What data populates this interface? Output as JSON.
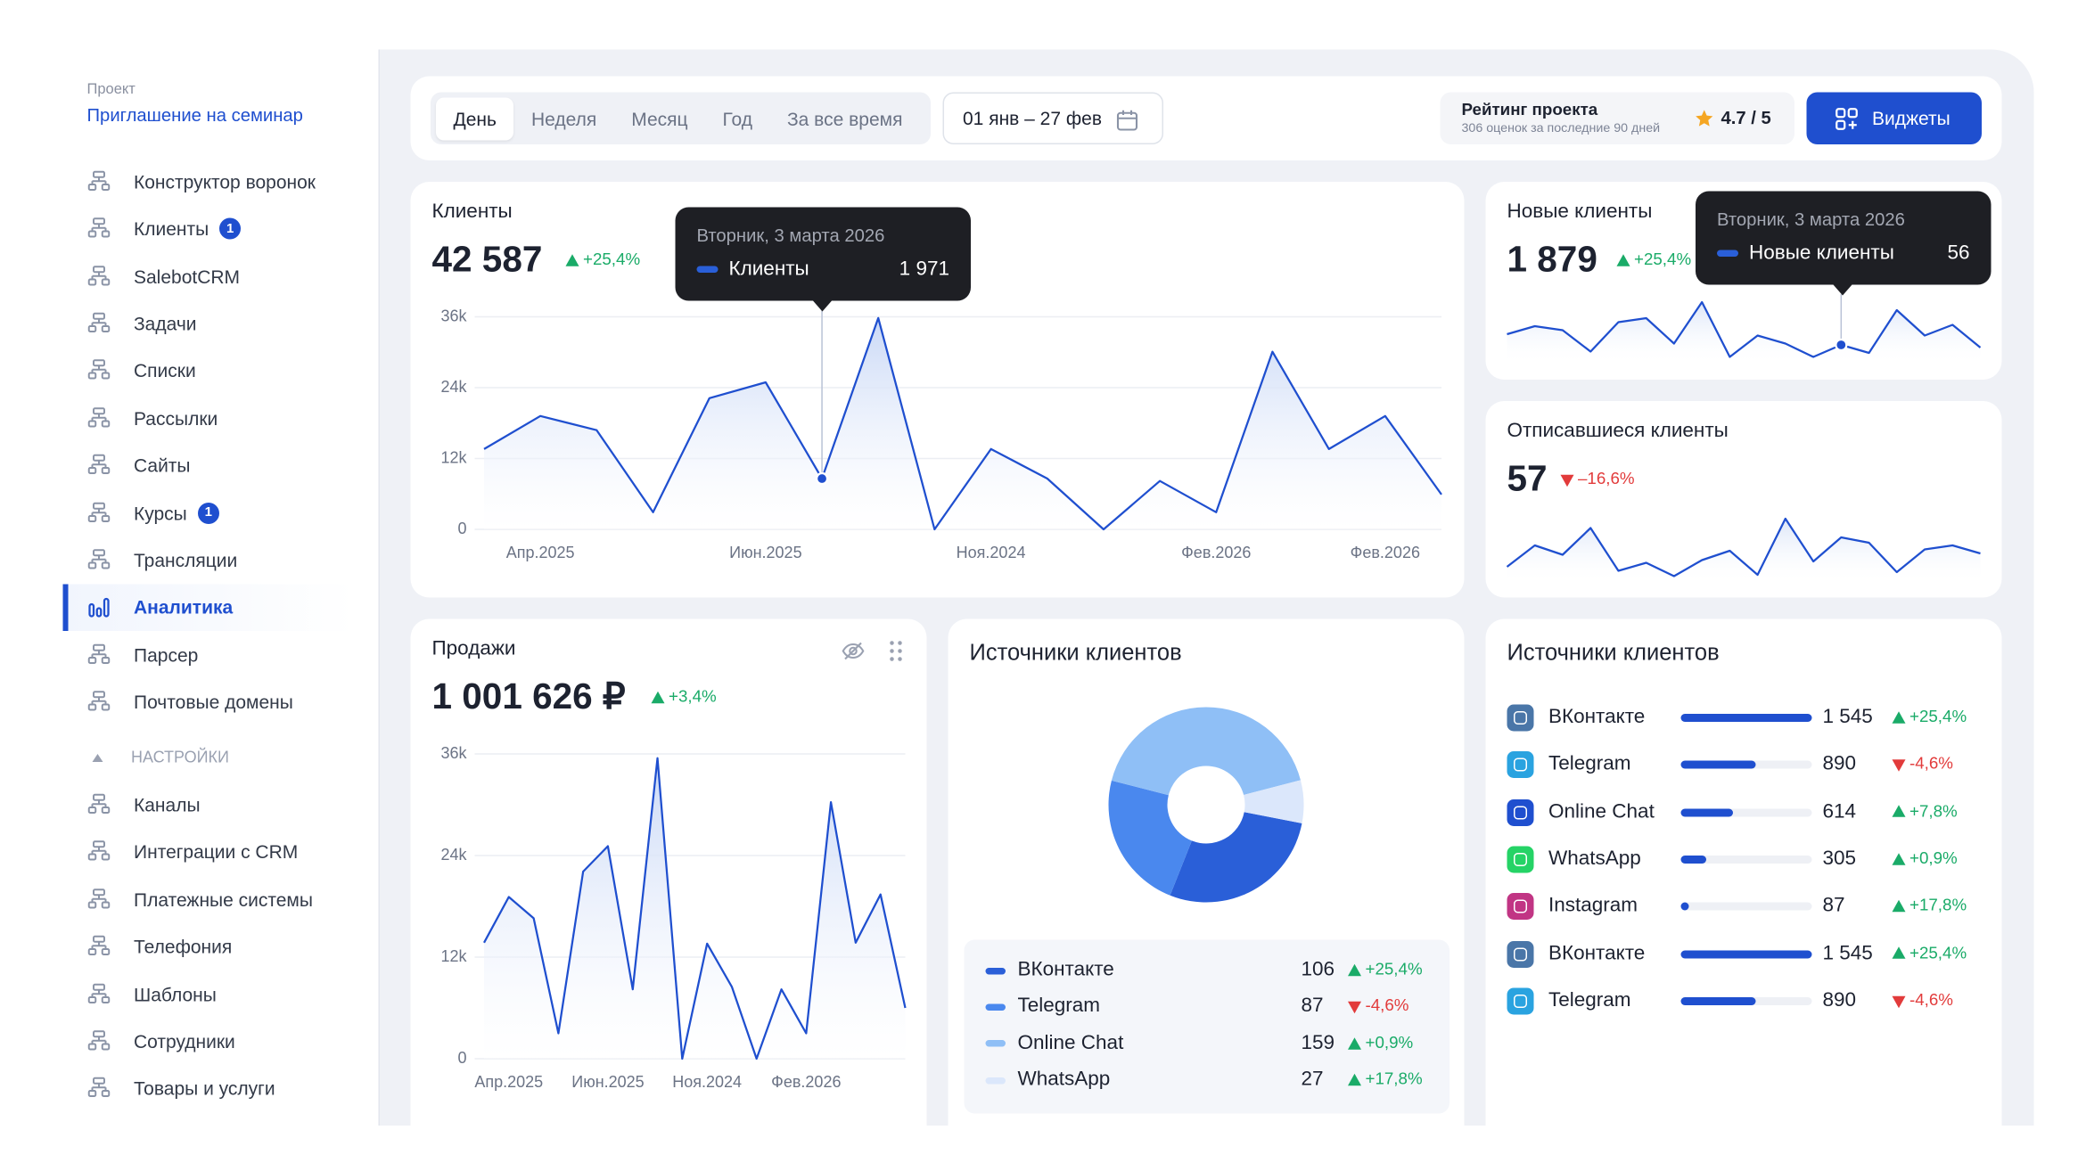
{
  "sidebar": {
    "project_label": "Проект",
    "project_name": "Приглашение на семинар",
    "active_index": 9,
    "items": [
      {
        "label": "Конструктор воронок"
      },
      {
        "label": "Клиенты",
        "badge": 1
      },
      {
        "label": "SalebotCRM"
      },
      {
        "label": "Задачи"
      },
      {
        "label": "Списки"
      },
      {
        "label": "Рассылки"
      },
      {
        "label": "Сайты"
      },
      {
        "label": "Курсы",
        "badge": 1
      },
      {
        "label": "Трансляции"
      },
      {
        "label": "Аналитика"
      },
      {
        "label": "Парсер"
      },
      {
        "label": "Почтовые домены"
      }
    ],
    "settings_label": "НАСТРОЙКИ",
    "settings_items": [
      "Каналы",
      "Интеграции с CRM",
      "Платежные системы",
      "Телефония",
      "Шаблоны",
      "Сотрудники",
      "Товары и услуги"
    ]
  },
  "toolbar": {
    "periods": [
      "День",
      "Неделя",
      "Месяц",
      "Год",
      "За все время"
    ],
    "active_period": 0,
    "date_range": "01 янв – 27 фев",
    "rating": {
      "title": "Рейтинг проекта",
      "subtitle": "306 оценок за последние 90 дней",
      "score": "4.7 / 5"
    },
    "widgets_button": "Виджеты"
  },
  "clients": {
    "title": "Клиенты",
    "total": "42 587",
    "change": "+25,4%",
    "tooltip": {
      "date": "Вторник, 3 марта 2026",
      "label": "Клиенты",
      "value": "1 971"
    },
    "chart": {
      "type": "area",
      "color": "#1f4fcf",
      "categories": [
        null,
        "Апр.2025",
        null,
        null,
        null,
        "Июн.2025",
        null,
        null,
        null,
        "Ноя.2024",
        null,
        null,
        null,
        "Фев.2026",
        null,
        null,
        "Фев.2026",
        null
      ],
      "values": [
        13600,
        19200,
        16800,
        2900,
        22200,
        24900,
        8600,
        35800,
        0,
        13600,
        8600,
        0,
        8200,
        2900,
        30100,
        13600,
        19200,
        5900
      ],
      "ylim": [
        0,
        36000
      ],
      "yticks": [
        0,
        {
          "value": 12000,
          "label": "12k"
        },
        {
          "value": 24000,
          "label": "24k"
        },
        {
          "value": 36000,
          "label": "36k"
        }
      ],
      "grid": true
    }
  },
  "new_clients": {
    "title": "Новые клиенты",
    "total": "1 879",
    "change": "+25,4%",
    "tooltip": {
      "date": "Вторник, 3 марта 2026",
      "label": "Новые клиенты",
      "value": "56"
    },
    "chart": {
      "type": "line",
      "color": "#1f4fcf",
      "values": [
        20,
        26,
        23,
        7,
        29,
        32,
        13,
        44,
        3,
        19,
        13,
        3,
        12,
        6,
        38,
        19,
        27,
        10
      ]
    }
  },
  "unsubscribed": {
    "title": "Отписавшиеся клиенты",
    "total": "57",
    "change": "–16,6%",
    "chart": {
      "type": "line",
      "color": "#1f4fcf",
      "values": [
        11,
        27,
        20,
        40,
        8,
        14,
        4,
        16,
        23,
        5,
        47,
        15,
        33,
        29,
        7,
        24,
        27,
        21
      ]
    }
  },
  "sales": {
    "title": "Продажи",
    "total": "1 001 626 ₽",
    "change": "+3,4%",
    "chart": {
      "type": "area",
      "color": "#1f4fcf",
      "categories": [
        null,
        "Апр.2025",
        null,
        null,
        null,
        "Июн.2025",
        null,
        null,
        null,
        "Ноя.2024",
        null,
        null,
        null,
        "Фев.2026",
        null,
        null,
        null,
        null
      ],
      "values": [
        13700,
        19100,
        16600,
        3000,
        22100,
        25100,
        8200,
        35500,
        0,
        13600,
        8500,
        0,
        8200,
        3000,
        30300,
        13700,
        19400,
        6000
      ],
      "ylim": [
        0,
        36000
      ],
      "yticks": [
        0,
        {
          "value": 12000,
          "label": "12k"
        },
        {
          "value": 24000,
          "label": "24k"
        },
        {
          "value": 36000,
          "label": "36k"
        }
      ],
      "grid": true
    }
  },
  "sources_donut": {
    "title": "Источники клиентов",
    "chart": {
      "type": "donut",
      "names": [
        "ВКонтакте",
        "Telegram",
        "Online Chat",
        "WhatsApp"
      ],
      "values": [
        106,
        87,
        159,
        27
      ],
      "changes": [
        "+25,4%",
        "-4,6%",
        "+0,9%",
        "+17,8%"
      ],
      "colors": [
        "#2a5fd8",
        "#4a88ee",
        "#8fbff6",
        "#dbe7fb"
      ]
    }
  },
  "sources_list": {
    "title": "Источники клиентов",
    "type": "bar",
    "bar_color": "#1f4fcf",
    "names": [
      "ВКонтакте",
      "Telegram",
      "Online Chat",
      "WhatsApp",
      "Instagram",
      "ВКонтакте",
      "Telegram"
    ],
    "values": [
      1545,
      890,
      614,
      305,
      87,
      1545,
      890
    ],
    "value_labels": [
      "1 545",
      "890",
      "614",
      "305",
      "87",
      "1 545",
      "890"
    ],
    "changes": [
      "+25,4%",
      "-4,6%",
      "+7,8%",
      "+0,9%",
      "+17,8%",
      "+25,4%",
      "-4,6%"
    ],
    "icon_colors": [
      "#4a76a8",
      "#2aa3e0",
      "#1f4fcf",
      "#25d366",
      "#c13584",
      "#4a76a8",
      "#2aa3e0"
    ]
  }
}
